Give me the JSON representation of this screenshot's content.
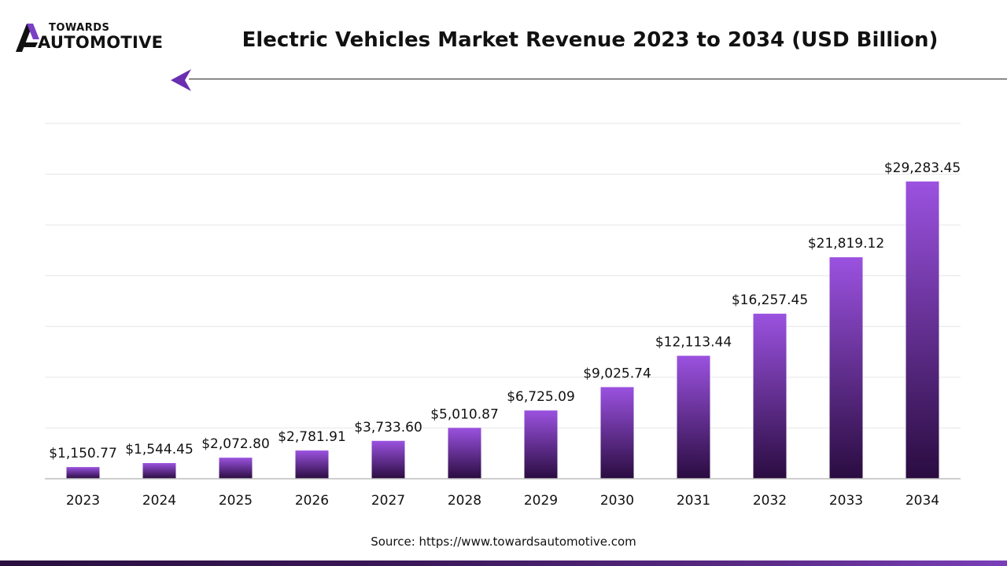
{
  "logo": {
    "top_text": "TOWARDS",
    "bottom_text": "AUTOMOTIVE"
  },
  "header": {
    "title": "Electric Vehicles Market Revenue 2023 to 2034 (USD Billion)"
  },
  "colors": {
    "bar_top": "#9b52e0",
    "bar_bottom": "#2a0c40",
    "accent": "#6a2fb0",
    "grid": "#e6e6e6",
    "axis": "#bdbdbd"
  },
  "chart_data": {
    "type": "bar",
    "title": "Electric Vehicles Market Revenue 2023 to 2034 (USD Billion)",
    "categories": [
      "2023",
      "2024",
      "2025",
      "2026",
      "2027",
      "2028",
      "2029",
      "2030",
      "2031",
      "2032",
      "2033",
      "2034"
    ],
    "values": [
      1150.77,
      1544.45,
      2072.8,
      2781.91,
      3733.6,
      5010.87,
      6725.09,
      9025.74,
      12113.44,
      16257.45,
      21819.12,
      29283.45
    ],
    "value_labels": [
      "$1,150.77",
      "$1,544.45",
      "$2,072.80",
      "$2,781.91",
      "$3,733.60",
      "$5,010.87",
      "$6,725.09",
      "$9,025.74",
      "$12,113.44",
      "$16,257.45",
      "$21,819.12",
      "$29,283.45"
    ],
    "ylim": [
      0,
      35000
    ],
    "grid": true,
    "xlabel": "",
    "ylabel": ""
  },
  "footer": {
    "source": "Source: https://www.towardsautomotive.com"
  }
}
